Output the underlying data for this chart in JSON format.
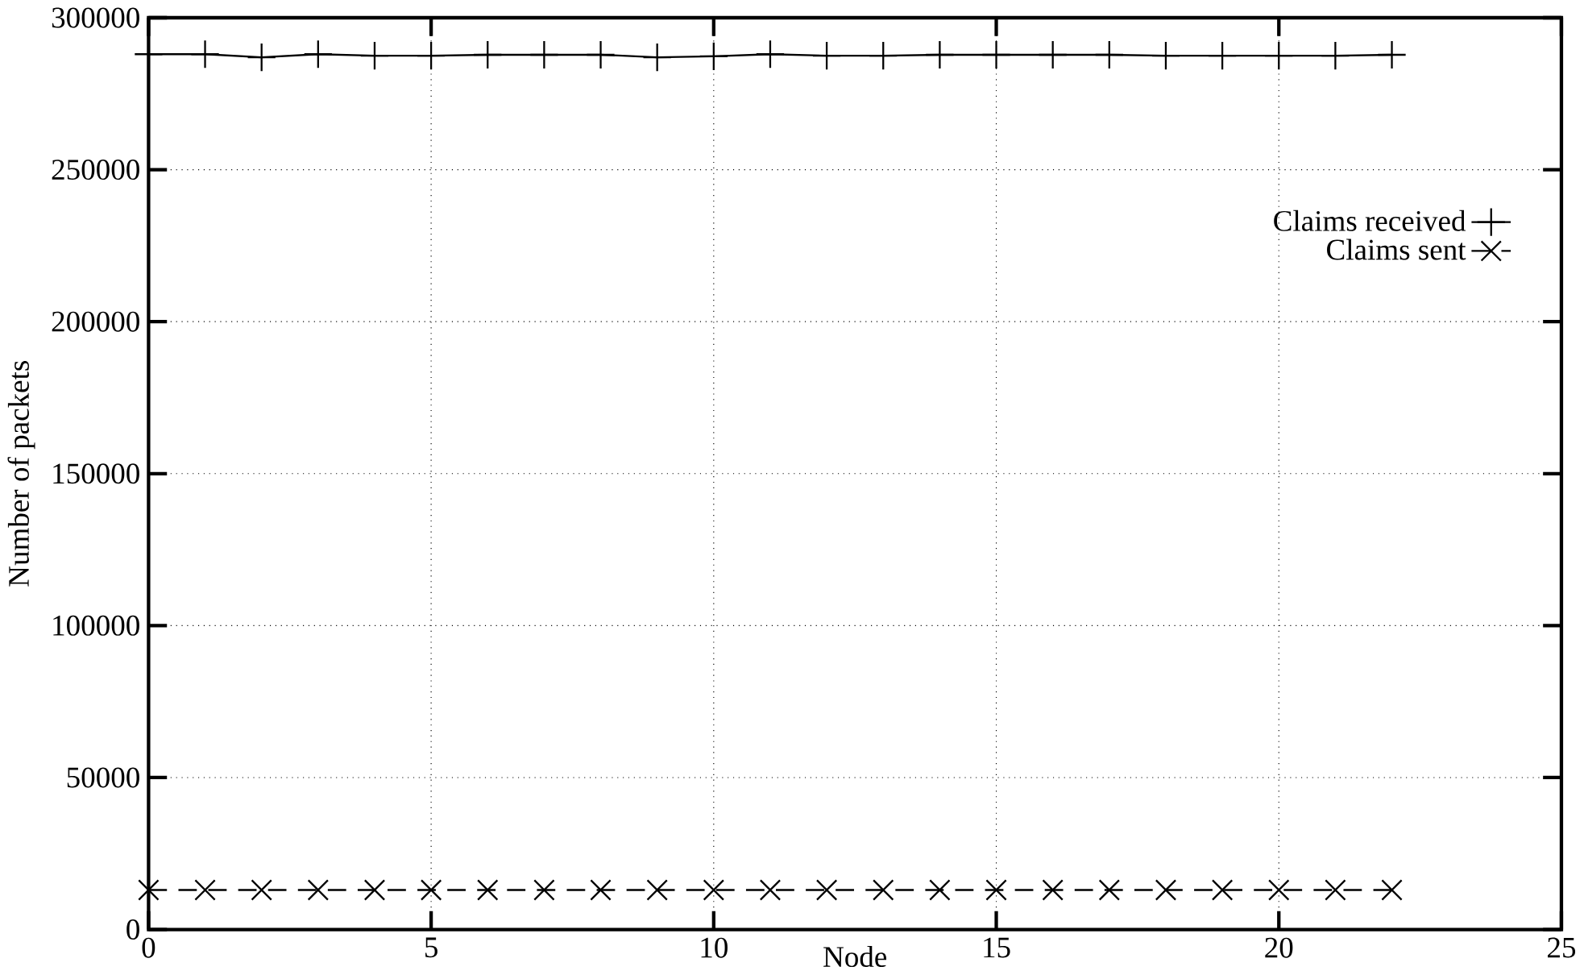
{
  "chart_data": {
    "type": "line",
    "xlabel": "Node",
    "ylabel": "Number of packets",
    "x": [
      0,
      1,
      2,
      3,
      4,
      5,
      6,
      7,
      8,
      9,
      10,
      11,
      12,
      13,
      14,
      15,
      16,
      17,
      18,
      19,
      20,
      21,
      22
    ],
    "series": [
      {
        "name": "Claims received",
        "color": "#000000",
        "marker": "plus",
        "line_style": "solid",
        "values": [
          288000,
          288000,
          287000,
          288000,
          287500,
          287500,
          287800,
          287800,
          287800,
          287000,
          287300,
          288000,
          287500,
          287500,
          287800,
          287800,
          287800,
          287800,
          287500,
          287500,
          287500,
          287500,
          287800
        ]
      },
      {
        "name": "Claims sent",
        "color": "#000000",
        "marker": "cross",
        "line_style": "dashed",
        "values": [
          13000,
          13000,
          13000,
          13000,
          13000,
          13000,
          13000,
          13000,
          13000,
          13000,
          13000,
          13000,
          13000,
          13000,
          13000,
          13000,
          13000,
          13000,
          13000,
          13000,
          13000,
          13000,
          13000
        ]
      }
    ],
    "xlim": [
      0,
      25
    ],
    "xticks": [
      0,
      5,
      10,
      15,
      20,
      25
    ],
    "ylim": [
      0,
      300000
    ],
    "yticks": [
      0,
      50000,
      100000,
      150000,
      200000,
      250000,
      300000
    ],
    "grid": true,
    "legend": "right"
  }
}
